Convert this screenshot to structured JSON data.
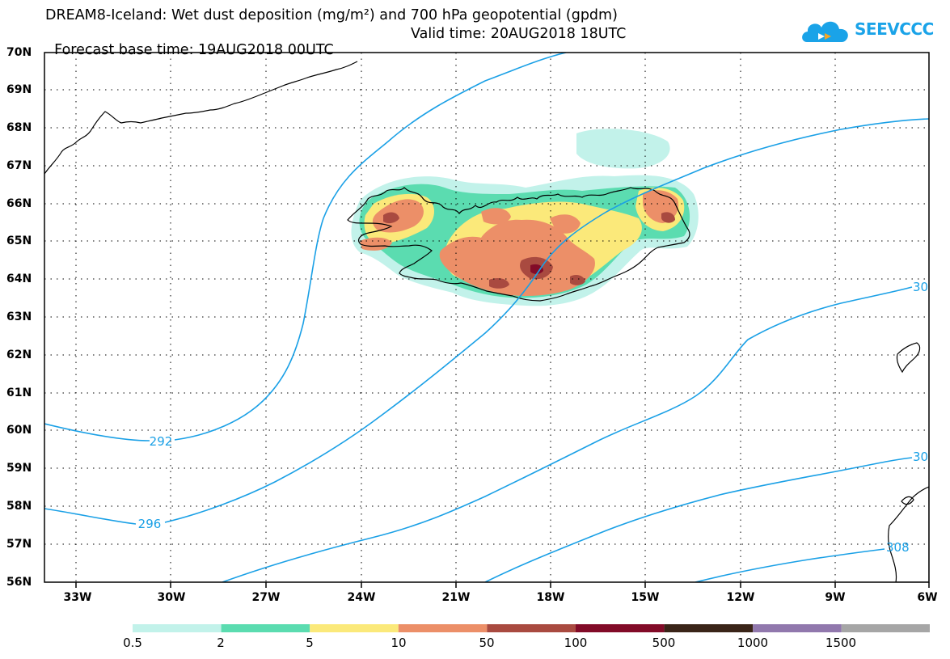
{
  "header": {
    "title": "DREAM8-Iceland: Wet dust deposition (mg/m²) and 700 hPa geopotential (gpdm)",
    "base_time": "Forecast base time: 19AUG2018 00UTC",
    "valid_time": "Valid time: 20AUG2018 18UTC",
    "logo_text": "SEEVCCC",
    "logo_icon": "cloud-icon"
  },
  "map": {
    "lat_labels": [
      "70N",
      "69N",
      "68N",
      "67N",
      "66N",
      "65N",
      "64N",
      "63N",
      "62N",
      "61N",
      "60N",
      "59N",
      "58N",
      "57N",
      "56N"
    ],
    "lon_labels": [
      "33W",
      "30W",
      "27W",
      "24W",
      "21W",
      "18W",
      "15W",
      "12W",
      "9W",
      "6W"
    ],
    "contour_labels": [
      "292",
      "296",
      "30",
      "30",
      "308"
    ],
    "contour_color": "#1aa0e6"
  },
  "legend": {
    "labels": [
      "0.5",
      "2",
      "5",
      "10",
      "50",
      "100",
      "500",
      "1000",
      "1500"
    ],
    "colors": [
      "#c2f2ea",
      "#5bdcb0",
      "#fbe97a",
      "#ec8f68",
      "#a94a40",
      "#820b28",
      "#3a2418",
      "#9178ad",
      "#a6a6a6"
    ]
  }
}
